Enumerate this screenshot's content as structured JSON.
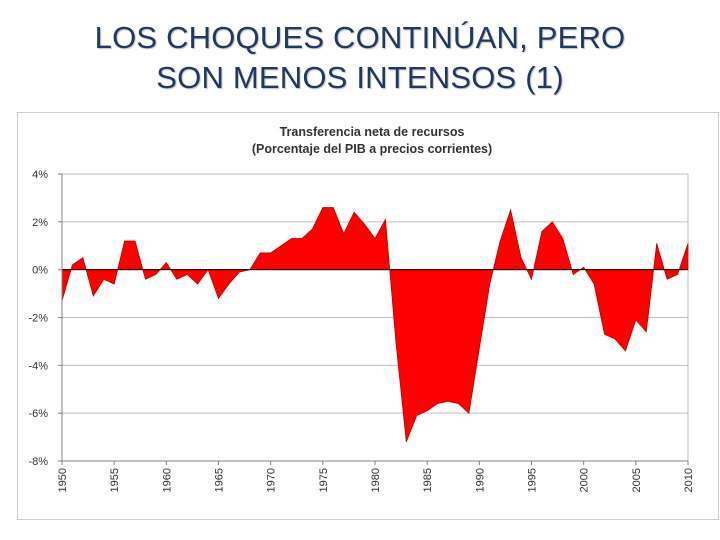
{
  "slide": {
    "title_line1": "LOS CHOQUES CONTINÚAN, PERO",
    "title_line2": "SON MENOS INTENSOS (1)"
  },
  "colors": {
    "title": "#1f3864",
    "fill": "#ff0000",
    "stroke": "#c00000",
    "grid": "#bfbfbf"
  },
  "chart_data": {
    "type": "area",
    "title": "Transferencia neta de recursos",
    "subtitle": "(Porcentaje del PIB a precios corrientes)",
    "xlabel": "",
    "ylabel": "",
    "ylim": [
      -8,
      4
    ],
    "yticks": [
      4,
      2,
      0,
      -2,
      -4,
      -6,
      -8
    ],
    "ytick_labels": [
      "4%",
      "2%",
      "0%",
      "-2%",
      "-4%",
      "-6%",
      "-8%"
    ],
    "xticks": [
      "1950",
      "1955",
      "1960",
      "1965",
      "1970",
      "1975",
      "1980",
      "1985",
      "1990",
      "1995",
      "2000",
      "2005",
      "2010"
    ],
    "grid": true,
    "series": [
      {
        "name": "Transferencia neta de recursos",
        "x": [
          1950,
          1951,
          1952,
          1953,
          1954,
          1955,
          1956,
          1957,
          1958,
          1959,
          1960,
          1961,
          1962,
          1963,
          1964,
          1965,
          1966,
          1967,
          1968,
          1969,
          1970,
          1971,
          1972,
          1973,
          1974,
          1975,
          1976,
          1977,
          1978,
          1979,
          1980,
          1981,
          1982,
          1983,
          1984,
          1985,
          1986,
          1987,
          1988,
          1989,
          1990,
          1991,
          1992,
          1993,
          1994,
          1995,
          1996,
          1997,
          1998,
          1999,
          2000,
          2001,
          2002,
          2003,
          2004,
          2005,
          2006,
          2007,
          2008,
          2009,
          2010
        ],
        "values": [
          -1.3,
          0.2,
          0.5,
          -1.1,
          -0.4,
          -0.6,
          1.2,
          1.2,
          -0.4,
          -0.2,
          0.3,
          -0.4,
          -0.2,
          -0.6,
          0.0,
          -1.2,
          -0.6,
          -0.1,
          0.0,
          0.7,
          0.7,
          1.0,
          1.3,
          1.3,
          1.7,
          2.6,
          2.6,
          1.5,
          2.4,
          1.9,
          1.3,
          2.1,
          -3.0,
          -7.2,
          -6.1,
          -5.9,
          -5.6,
          -5.5,
          -5.6,
          -6.0,
          -3.3,
          -0.6,
          1.2,
          2.5,
          0.5,
          -0.4,
          1.6,
          2.0,
          1.3,
          -0.2,
          0.1,
          -0.6,
          -2.7,
          -2.9,
          -3.4,
          -2.1,
          -2.6,
          1.1,
          -0.4,
          -0.2,
          1.1
        ]
      }
    ]
  }
}
